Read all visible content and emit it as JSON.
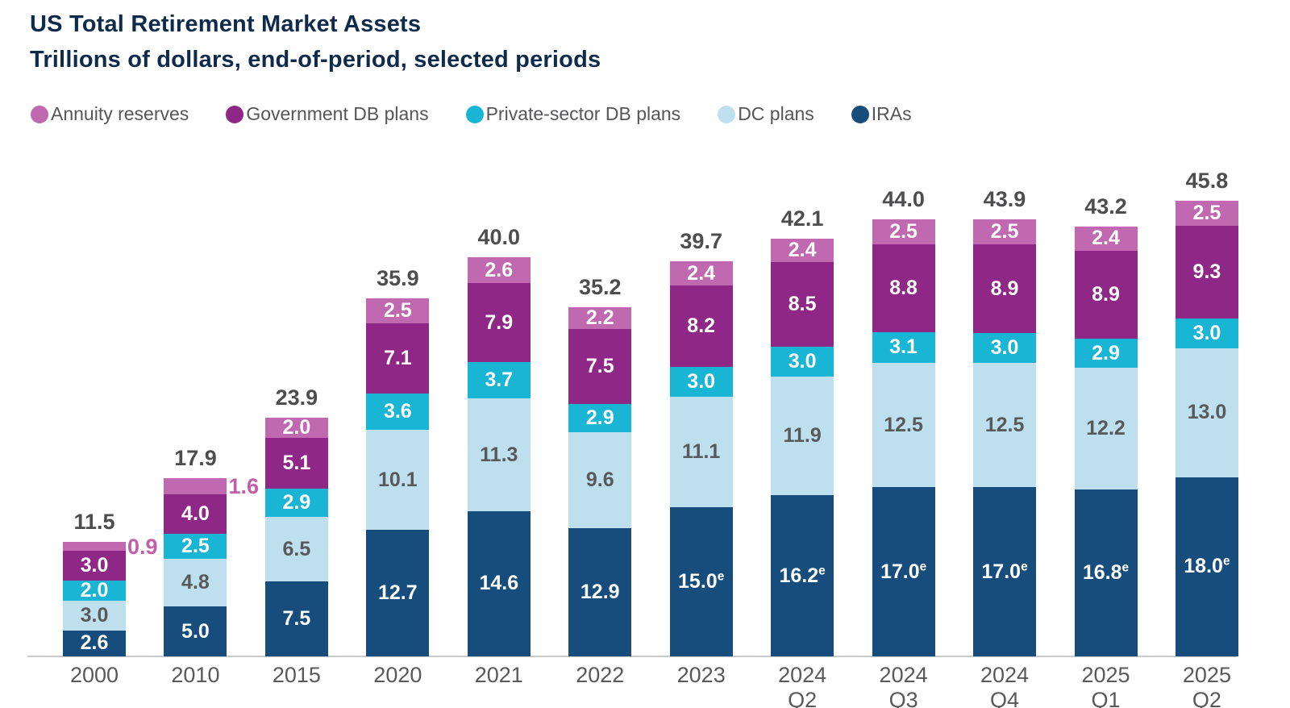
{
  "header": {
    "title": "US Total Retirement Market Assets",
    "subtitle": "Trillions of dollars, end-of-period, selected periods"
  },
  "legend": [
    {
      "label": "Annuity reserves",
      "color": "#c069b0"
    },
    {
      "label": "Government DB plans",
      "color": "#8f2786"
    },
    {
      "label": "Private-sector DB plans",
      "color": "#19b5d4"
    },
    {
      "label": "DC plans",
      "color": "#bee0ee"
    },
    {
      "label": "IRAs",
      "color": "#174d7c"
    }
  ],
  "chart_data": {
    "type": "bar",
    "stacked": true,
    "title": "US Total Retirement Market Assets",
    "subtitle": "Trillions of dollars, end-of-period, selected periods",
    "unit": "trillions of US dollars",
    "estimate_marker": "e",
    "categories": [
      {
        "label": "2000",
        "sub": ""
      },
      {
        "label": "2010",
        "sub": ""
      },
      {
        "label": "2015",
        "sub": ""
      },
      {
        "label": "2020",
        "sub": ""
      },
      {
        "label": "2021",
        "sub": ""
      },
      {
        "label": "2022",
        "sub": ""
      },
      {
        "label": "2023",
        "sub": ""
      },
      {
        "label": "2024",
        "sub": "Q2"
      },
      {
        "label": "2024",
        "sub": "Q3"
      },
      {
        "label": "2024",
        "sub": "Q4"
      },
      {
        "label": "2025",
        "sub": "Q1"
      },
      {
        "label": "2025",
        "sub": "Q2"
      }
    ],
    "totals": [
      11.5,
      17.9,
      23.9,
      35.9,
      40.0,
      35.2,
      39.7,
      42.1,
      44.0,
      43.9,
      43.2,
      45.8
    ],
    "series": [
      {
        "name": "IRAs",
        "color": "#174d7c",
        "label_color": "#ffffff",
        "values": [
          2.6,
          5.0,
          7.5,
          12.7,
          14.6,
          12.9,
          15.0,
          16.2,
          17.0,
          17.0,
          16.8,
          18.0
        ],
        "estimated": [
          false,
          false,
          false,
          false,
          false,
          false,
          true,
          true,
          true,
          true,
          true,
          true
        ]
      },
      {
        "name": "DC plans",
        "color": "#bee0ee",
        "label_color": "#58595b",
        "values": [
          3.0,
          4.8,
          6.5,
          10.1,
          11.3,
          9.6,
          11.1,
          11.9,
          12.5,
          12.5,
          12.2,
          13.0
        ]
      },
      {
        "name": "Private-sector DB plans",
        "color": "#19b5d4",
        "label_color": "#ffffff",
        "values": [
          2.0,
          2.5,
          2.9,
          3.6,
          3.7,
          2.9,
          3.0,
          3.0,
          3.1,
          3.0,
          2.9,
          3.0
        ]
      },
      {
        "name": "Government DB plans",
        "color": "#8f2786",
        "label_color": "#ffffff",
        "values": [
          3.0,
          4.0,
          5.1,
          7.1,
          7.9,
          7.5,
          8.2,
          8.5,
          8.8,
          8.9,
          8.9,
          9.3
        ]
      },
      {
        "name": "Annuity reserves",
        "color": "#c069b0",
        "label_color": "#ffffff",
        "values": [
          0.9,
          1.6,
          2.0,
          2.5,
          2.6,
          2.2,
          2.4,
          2.4,
          2.5,
          2.5,
          2.4,
          2.5
        ],
        "label_outside": [
          true,
          true,
          false,
          false,
          false,
          false,
          false,
          false,
          false,
          false,
          false,
          false
        ]
      }
    ],
    "outside_label_color": "#c15fa8",
    "total_label_color": "#4d4d4f",
    "axis_label_color": "#58595b",
    "ylim": [
      0,
      45.8
    ],
    "grid": false,
    "legend_position": "top"
  }
}
